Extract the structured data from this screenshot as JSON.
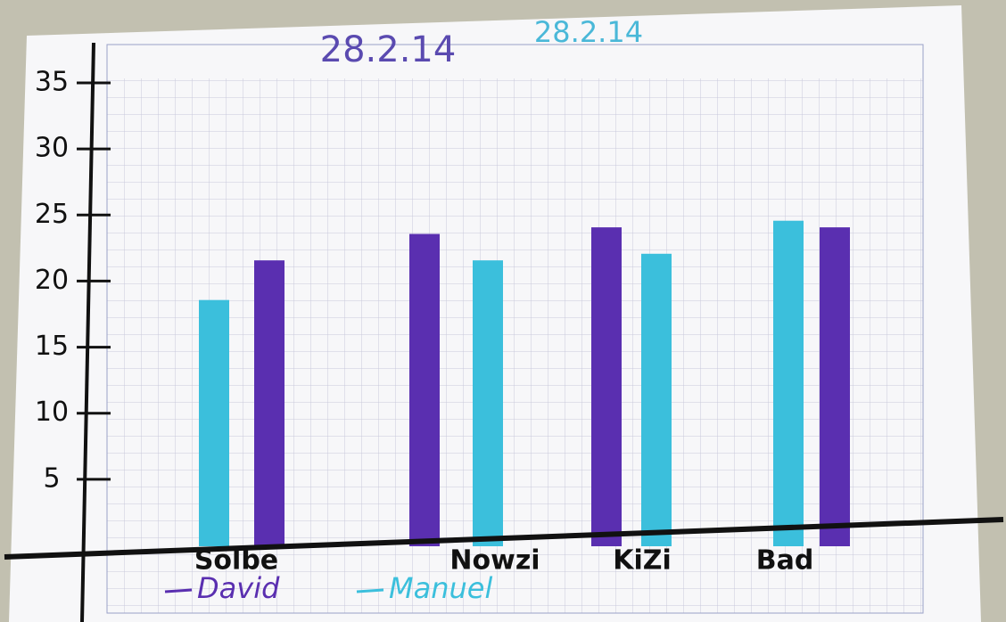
{
  "chart_data": {
    "type": "bar",
    "title": "28.2.14",
    "subtitle": "28.2.14",
    "categories": [
      "Solbe",
      "Nowzi",
      "KiZi",
      "Bad"
    ],
    "series": [
      {
        "name": "David",
        "color": "#5a2fb0",
        "values": [
          21.5,
          23.5,
          24,
          24
        ]
      },
      {
        "name": "Manuel",
        "color": "#3bbfdc",
        "values": [
          18.5,
          21.5,
          22,
          24.5
        ]
      }
    ],
    "ylim": [
      0,
      35
    ],
    "yticks": [
      5,
      10,
      15,
      20,
      25,
      30,
      35
    ],
    "grid": true
  }
}
